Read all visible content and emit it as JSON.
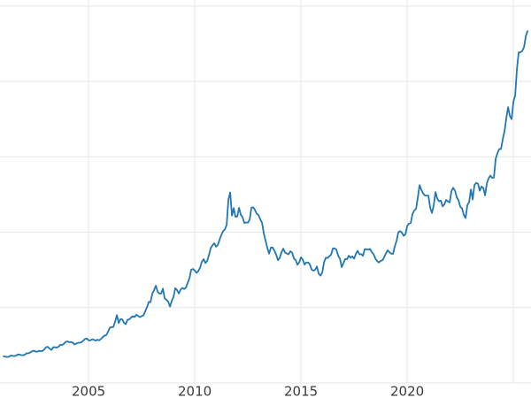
{
  "chart_data": {
    "type": "line",
    "title": "",
    "xlabel": "",
    "ylabel": "",
    "x_unit": "year",
    "x_start_year": 2001,
    "x_step_months": 1,
    "xlim": [
      2000.83,
      2025.83
    ],
    "ylim": [
      -150,
      3810
    ],
    "grid": {
      "on": true,
      "color": "#e5e5e5",
      "vertical_years": [
        2005,
        2010,
        2015,
        2020,
        2025
      ],
      "horizontal_values": [
        0,
        750,
        1500,
        2250,
        3000,
        3750
      ]
    },
    "x_ticks": [
      {
        "year": 2005,
        "label": "2005"
      },
      {
        "year": 2010,
        "label": "2010"
      },
      {
        "year": 2015,
        "label": "2015"
      },
      {
        "year": 2020,
        "label": "2020"
      }
    ],
    "tick_label_color": "#3a3a3a",
    "tick_font_size": 15,
    "legend": null,
    "series": [
      {
        "name": "",
        "color": "#1f77b4",
        "line_width": 1.8,
        "values": [
          265,
          262,
          258,
          260,
          272,
          270,
          266,
          272,
          283,
          283,
          276,
          276,
          281,
          295,
          294,
          302,
          314,
          321,
          313,
          310,
          319,
          316,
          319,
          333,
          356,
          359,
          340,
          328,
          355,
          356,
          351,
          360,
          379,
          378,
          389,
          407,
          414,
          405,
          406,
          403,
          383,
          392,
          398,
          400,
          405,
          420,
          439,
          442,
          424,
          423,
          434,
          429,
          421,
          430,
          424,
          437,
          456,
          470,
          476,
          510,
          550,
          555,
          557,
          611,
          675,
          596,
          634,
          632,
          599,
          585,
          629,
          632,
          651,
          664,
          655,
          679,
          667,
          655,
          665,
          672,
          712,
          754,
          806,
          803,
          889,
          922,
          968,
          909,
          888,
          889,
          939,
          839,
          829,
          807,
          760,
          816,
          858,
          943,
          924,
          890,
          928,
          945,
          934,
          949,
          996,
          1043,
          1127,
          1134,
          1118,
          1095,
          1113,
          1148,
          1205,
          1232,
          1193,
          1215,
          1271,
          1342,
          1369,
          1390,
          1356,
          1372,
          1424,
          1473,
          1510,
          1528,
          1572,
          1826,
          1895,
          1665,
          1739,
          1652,
          1656,
          1742,
          1674,
          1649,
          1591,
          1598,
          1594,
          1626,
          1744,
          1747,
          1721,
          1684,
          1671,
          1627,
          1593,
          1487,
          1414,
          1343,
          1286,
          1347,
          1348,
          1316,
          1275,
          1221,
          1244,
          1300,
          1336,
          1298,
          1288,
          1279,
          1311,
          1295,
          1238,
          1222,
          1176,
          1200,
          1250,
          1227,
          1178,
          1198,
          1198,
          1181,
          1128,
          1117,
          1125,
          1159,
          1086,
          1068,
          1097,
          1199,
          1246,
          1242,
          1260,
          1276,
          1337,
          1340,
          1326,
          1266,
          1238,
          1152,
          1192,
          1234,
          1231,
          1266,
          1246,
          1260,
          1236,
          1283,
          1315,
          1280,
          1282,
          1264,
          1331,
          1330,
          1325,
          1334,
          1303,
          1281,
          1238,
          1213,
          1198,
          1215,
          1220,
          1250,
          1291,
          1320,
          1300,
          1286,
          1284,
          1359,
          1413,
          1500,
          1511,
          1495,
          1464,
          1479,
          1561,
          1585,
          1591,
          1680,
          1716,
          1732,
          1843,
          1968,
          1921,
          1886,
          1864,
          1864,
          1863,
          1742,
          1691,
          1768,
          1899,
          1834,
          1807,
          1814,
          1757,
          1777,
          1820,
          1805,
          1797,
          1909,
          1942,
          1911,
          1848,
          1817,
          1753,
          1737,
          1671,
          1641,
          1769,
          1800,
          1924,
          1826,
          1969,
          1990,
          1982,
          1912,
          1954,
          1940,
          1866,
          1984,
          2036,
          2063,
          2040,
          2044,
          2230,
          2286,
          2327,
          2327,
          2426,
          2503,
          2635,
          2744,
          2657,
          2625,
          2798,
          2858,
          3124,
          3289,
          3289,
          3303,
          3340,
          3448,
          3500
        ]
      }
    ]
  }
}
